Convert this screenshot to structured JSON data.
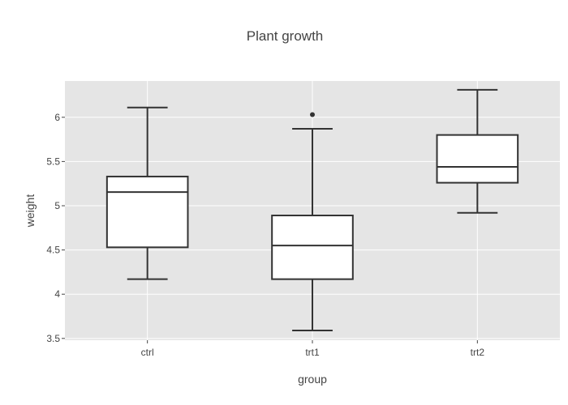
{
  "chart_data": {
    "type": "box",
    "title": "Plant growth",
    "xlabel": "group",
    "ylabel": "weight",
    "ylim": [
      3.48,
      6.41
    ],
    "yticks": [
      3.5,
      4,
      4.5,
      5,
      5.5,
      6
    ],
    "ytick_labels": [
      "3.5",
      "4",
      "4.5",
      "5",
      "5.5",
      "6"
    ],
    "grid": true,
    "colors": {
      "panel": "#e5e5e5",
      "grid": "#ffffff",
      "box_fill": "#ffffff",
      "box_line": "#333333",
      "text": "#444444"
    },
    "categories": [
      "ctrl",
      "trt1",
      "trt2"
    ],
    "boxes": [
      {
        "group": "ctrl",
        "min": 4.17,
        "q1": 4.53,
        "median": 5.155,
        "q3": 5.33,
        "max": 6.11,
        "outliers": []
      },
      {
        "group": "trt1",
        "min": 3.59,
        "q1": 4.17,
        "median": 4.55,
        "q3": 4.89,
        "max": 5.87,
        "outliers": [
          6.03
        ]
      },
      {
        "group": "trt2",
        "min": 4.92,
        "q1": 5.26,
        "median": 5.44,
        "q3": 5.8,
        "max": 6.31,
        "outliers": []
      }
    ]
  }
}
